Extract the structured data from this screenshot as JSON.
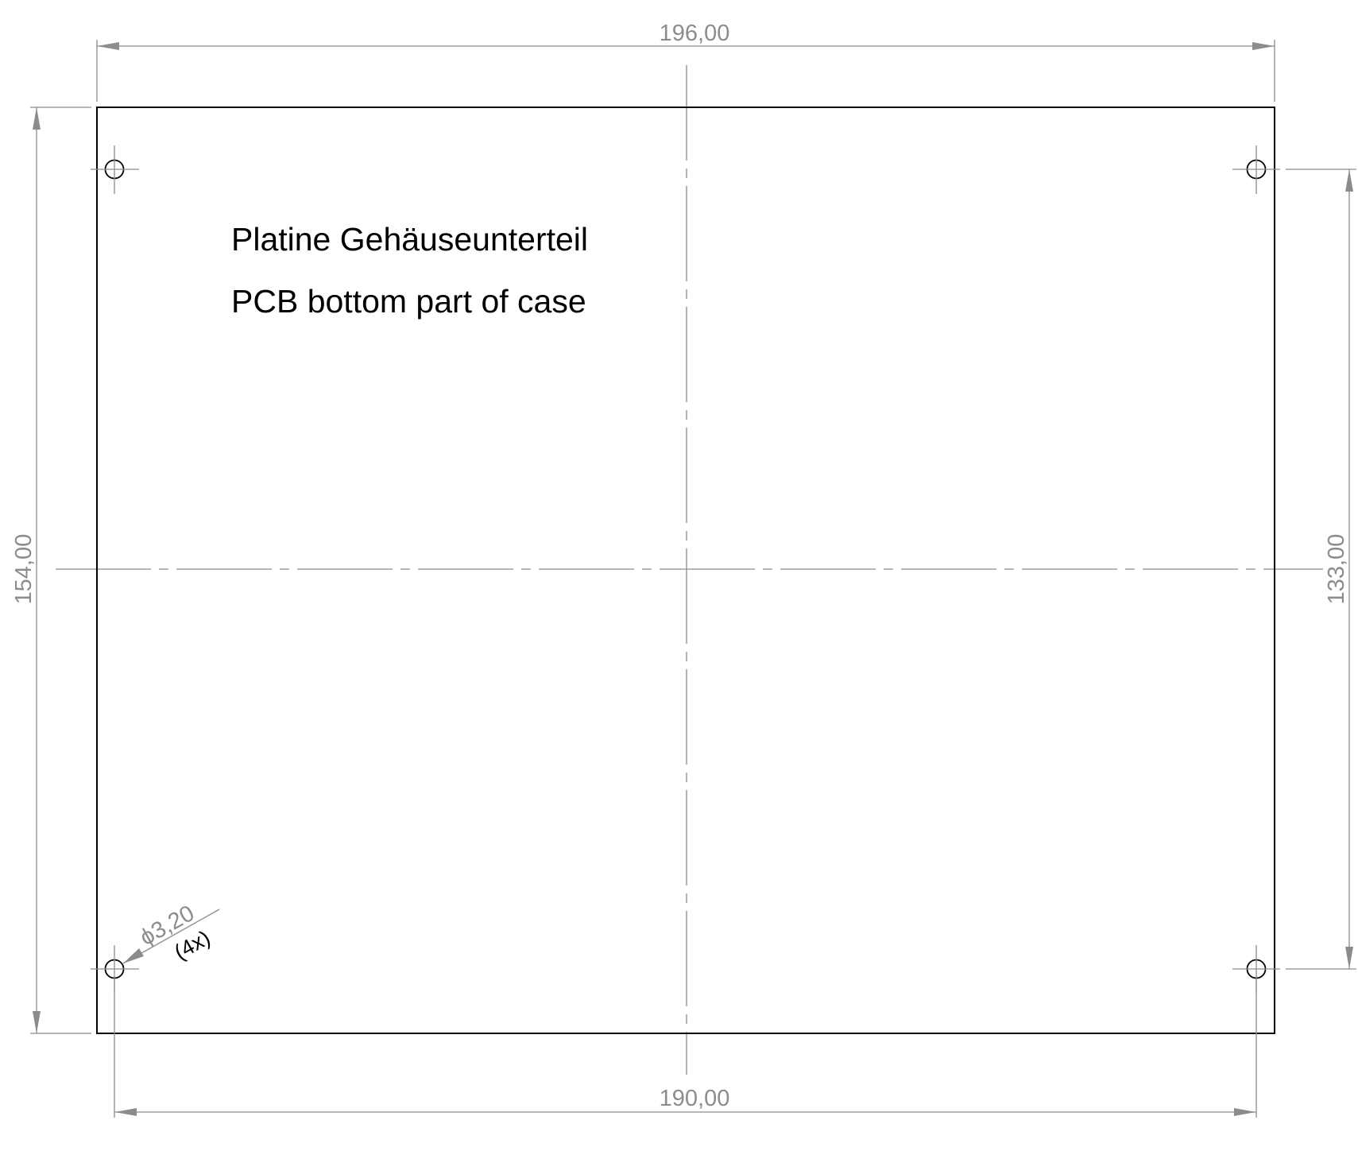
{
  "drawing": {
    "title_de": "Platine Gehäuseunterteil",
    "title_en": "PCB bottom part of case",
    "colors": {
      "dimension": "#8c8c8c",
      "outline": "#000000",
      "background": "#ffffff"
    }
  },
  "dimensions": {
    "overall_width": "196,00",
    "overall_height": "154,00",
    "hole_spacing_x": "190,00",
    "hole_spacing_y": "133,00",
    "hole_diameter": "3,20",
    "hole_count": "(4x)",
    "diameter_symbol": "ϕ"
  }
}
